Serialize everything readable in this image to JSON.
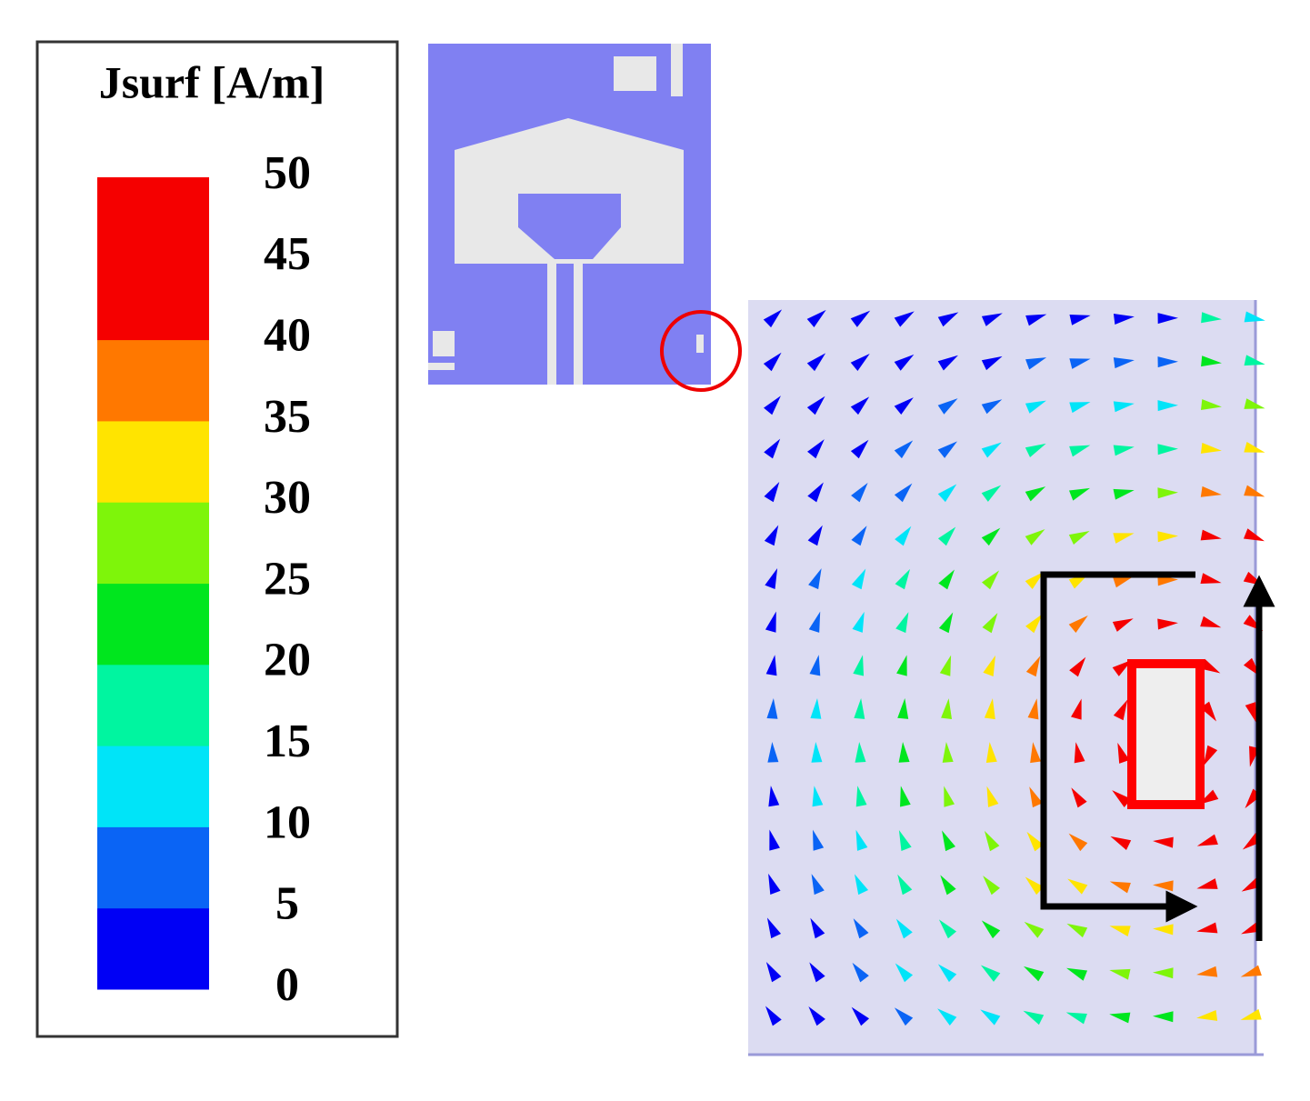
{
  "legend": {
    "title": "Jsurf [A/m]",
    "ticks": [
      0,
      5,
      10,
      15,
      20,
      25,
      30,
      35,
      40,
      45,
      50
    ],
    "colors": [
      "#0000f5",
      "#0a64f5",
      "#00e4f8",
      "#00f5a0",
      "#00e61e",
      "#7ef50a",
      "#ffe400",
      "#ff7800",
      "#f50000",
      "#f50000"
    ]
  }
}
